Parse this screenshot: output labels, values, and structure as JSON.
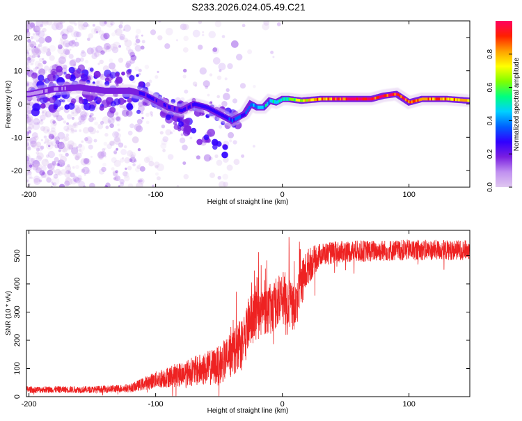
{
  "title": "S233.2026.024.05.49.C21",
  "colors": {
    "snr_line": "#ee2222",
    "axis": "#000000",
    "colormap": [
      "#e0c8f0",
      "#c090f0",
      "#7a1fe0",
      "#3000ff",
      "#0060ff",
      "#00d0ff",
      "#00ff80",
      "#80ff00",
      "#ffff00",
      "#ffa000",
      "#ff2000",
      "#ff0060"
    ]
  },
  "chart_data": [
    {
      "type": "heatmap",
      "name": "spectrogram",
      "xlabel": "Height of straight line (km)",
      "ylabel": "Frequency (Hz)",
      "xlim": [
        -202,
        148
      ],
      "ylim": [
        -25,
        25
      ],
      "xticks": [
        -200,
        -100,
        0,
        100
      ],
      "yticks": [
        -20,
        -10,
        0,
        10,
        20
      ],
      "colorbar": {
        "label": "Normalized spectral amplitude",
        "range": [
          0.0,
          1.0
        ],
        "ticks": [
          0.0,
          0.2,
          0.4,
          0.6,
          0.8
        ]
      },
      "ridge": [
        {
          "x": -200,
          "y": 3
        },
        {
          "x": -180,
          "y": 4.5
        },
        {
          "x": -160,
          "y": 5
        },
        {
          "x": -140,
          "y": 4
        },
        {
          "x": -120,
          "y": 4
        },
        {
          "x": -110,
          "y": 3
        },
        {
          "x": -100,
          "y": 1
        },
        {
          "x": -90,
          "y": -1
        },
        {
          "x": -80,
          "y": -2
        },
        {
          "x": -70,
          "y": 0
        },
        {
          "x": -60,
          "y": -1
        },
        {
          "x": -50,
          "y": -3
        },
        {
          "x": -40,
          "y": -5
        },
        {
          "x": -30,
          "y": -3
        },
        {
          "x": -25,
          "y": 0
        },
        {
          "x": -20,
          "y": -1
        },
        {
          "x": -15,
          "y": -1
        },
        {
          "x": -10,
          "y": 1
        },
        {
          "x": -5,
          "y": 0.5
        },
        {
          "x": 0,
          "y": 1.5
        },
        {
          "x": 5,
          "y": 1.5
        },
        {
          "x": 15,
          "y": 1
        },
        {
          "x": 30,
          "y": 1.5
        },
        {
          "x": 50,
          "y": 1.5
        },
        {
          "x": 70,
          "y": 1.5
        },
        {
          "x": 80,
          "y": 2.5
        },
        {
          "x": 90,
          "y": 3
        },
        {
          "x": 100,
          "y": 0.5
        },
        {
          "x": 110,
          "y": 1.5
        },
        {
          "x": 130,
          "y": 1.5
        },
        {
          "x": 148,
          "y": 1
        }
      ],
      "amplitude_profile": [
        {
          "x": -200,
          "a": 0.15
        },
        {
          "x": -110,
          "a": 0.25
        },
        {
          "x": -60,
          "a": 0.3
        },
        {
          "x": -35,
          "a": 0.35
        },
        {
          "x": -15,
          "a": 0.45
        },
        {
          "x": 0,
          "a": 0.55
        },
        {
          "x": 20,
          "a": 0.75
        },
        {
          "x": 60,
          "a": 0.95
        },
        {
          "x": 90,
          "a": 0.9
        },
        {
          "x": 148,
          "a": 0.75
        }
      ],
      "branch": [
        {
          "x": -90,
          "y": -4
        },
        {
          "x": -80,
          "y": -6
        },
        {
          "x": -70,
          "y": -8
        },
        {
          "x": -60,
          "y": -10
        },
        {
          "x": -50,
          "y": -12
        },
        {
          "x": -45,
          "y": -13
        }
      ]
    },
    {
      "type": "line",
      "name": "snr",
      "xlabel": "Height of straight line (km)",
      "ylabel": "SNR (10 * v/v)",
      "xlim": [
        -202,
        148
      ],
      "ylim": [
        0,
        590
      ],
      "xticks": [
        -200,
        -100,
        0,
        100
      ],
      "yticks": [
        0,
        100,
        200,
        300,
        400,
        500
      ],
      "series": [
        {
          "name": "SNR",
          "envelope": [
            {
              "x": -200,
              "y": 25
            },
            {
              "x": -150,
              "y": 25
            },
            {
              "x": -120,
              "y": 30
            },
            {
              "x": -100,
              "y": 60
            },
            {
              "x": -80,
              "y": 80
            },
            {
              "x": -60,
              "y": 100
            },
            {
              "x": -50,
              "y": 110
            },
            {
              "x": -40,
              "y": 150
            },
            {
              "x": -30,
              "y": 200
            },
            {
              "x": -25,
              "y": 270
            },
            {
              "x": -20,
              "y": 290
            },
            {
              "x": -10,
              "y": 310
            },
            {
              "x": 0,
              "y": 350
            },
            {
              "x": 10,
              "y": 310
            },
            {
              "x": 15,
              "y": 400
            },
            {
              "x": 20,
              "y": 460
            },
            {
              "x": 30,
              "y": 505
            },
            {
              "x": 50,
              "y": 515
            },
            {
              "x": 100,
              "y": 520
            },
            {
              "x": 148,
              "y": 520
            }
          ],
          "noise": [
            {
              "x": -200,
              "n": 12
            },
            {
              "x": -150,
              "n": 12
            },
            {
              "x": -120,
              "n": 15
            },
            {
              "x": -100,
              "n": 30
            },
            {
              "x": -80,
              "n": 45
            },
            {
              "x": -60,
              "n": 60
            },
            {
              "x": -40,
              "n": 80
            },
            {
              "x": -25,
              "n": 90
            },
            {
              "x": -10,
              "n": 90
            },
            {
              "x": 0,
              "n": 90
            },
            {
              "x": 15,
              "n": 80
            },
            {
              "x": 30,
              "n": 40
            },
            {
              "x": 148,
              "n": 35
            }
          ]
        }
      ]
    }
  ]
}
